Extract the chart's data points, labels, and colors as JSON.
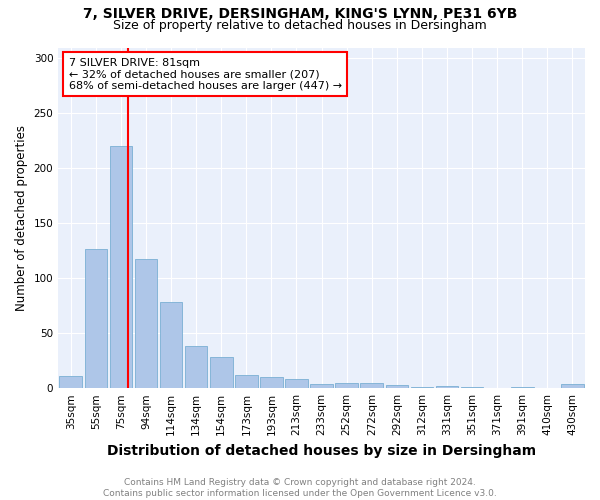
{
  "title1": "7, SILVER DRIVE, DERSINGHAM, KING'S LYNN, PE31 6YB",
  "title2": "Size of property relative to detached houses in Dersingham",
  "xlabel": "Distribution of detached houses by size in Dersingham",
  "ylabel": "Number of detached properties",
  "categories": [
    "35sqm",
    "55sqm",
    "75sqm",
    "94sqm",
    "114sqm",
    "134sqm",
    "154sqm",
    "173sqm",
    "193sqm",
    "213sqm",
    "233sqm",
    "252sqm",
    "272sqm",
    "292sqm",
    "312sqm",
    "331sqm",
    "351sqm",
    "371sqm",
    "391sqm",
    "410sqm",
    "430sqm"
  ],
  "values": [
    11,
    127,
    220,
    118,
    78,
    38,
    28,
    12,
    10,
    8,
    4,
    5,
    5,
    3,
    1,
    2,
    1,
    0,
    1,
    0,
    4
  ],
  "bar_color": "#aec6e8",
  "bar_edgecolor": "#7aafd4",
  "annotation_text_line1": "7 SILVER DRIVE: 81sqm",
  "annotation_text_line2": "← 32% of detached houses are smaller (207)",
  "annotation_text_line3": "68% of semi-detached houses are larger (447) →",
  "annotation_box_color": "white",
  "annotation_box_edgecolor": "red",
  "vline_color": "red",
  "ylim": [
    0,
    310
  ],
  "yticks": [
    0,
    50,
    100,
    150,
    200,
    250,
    300
  ],
  "background_color": "#eaf0fb",
  "footer_line1": "Contains HM Land Registry data © Crown copyright and database right 2024.",
  "footer_line2": "Contains public sector information licensed under the Open Government Licence v3.0.",
  "title_fontsize": 10,
  "subtitle_fontsize": 9,
  "xlabel_fontsize": 10,
  "ylabel_fontsize": 8.5,
  "tick_fontsize": 7.5,
  "footer_fontsize": 6.5,
  "annot_fontsize": 8
}
